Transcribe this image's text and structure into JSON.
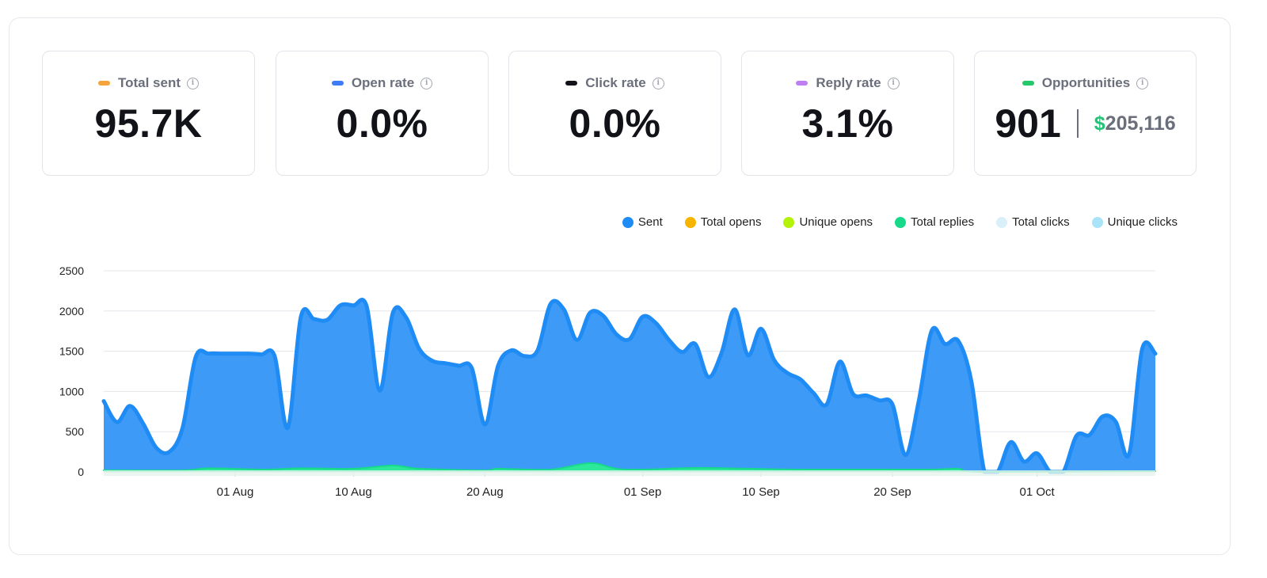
{
  "cards": [
    {
      "label": "Total sent",
      "value": "95.7K",
      "color": "#f3a53b",
      "icon": "info-icon"
    },
    {
      "label": "Open rate",
      "value": "0.0%",
      "color": "#3d7bf7",
      "icon": "info-icon"
    },
    {
      "label": "Click rate",
      "value": "0.0%",
      "color": "#111318",
      "icon": "info-icon"
    },
    {
      "label": "Reply rate",
      "value": "3.1%",
      "color": "#c07ff0",
      "icon": "info-icon"
    },
    {
      "label": "Opportunities",
      "value": "901",
      "currency": "$",
      "amount": "205,116",
      "color": "#24c86a",
      "icon": "info-icon"
    }
  ],
  "legend": [
    {
      "label": "Sent",
      "color": "#1f8cf5"
    },
    {
      "label": "Total opens",
      "color": "#f7b500"
    },
    {
      "label": "Unique opens",
      "color": "#b5f20a"
    },
    {
      "label": "Total replies",
      "color": "#17d98a"
    },
    {
      "label": "Total clicks",
      "color": "#d9f0fb"
    },
    {
      "label": "Unique clicks",
      "color": "#a9e3f7"
    }
  ],
  "chart_data": {
    "type": "area",
    "x_start": "2024-07-22",
    "x_end": "2024-10-07",
    "x_tick_labels": [
      "01 Aug",
      "10 Aug",
      "20 Aug",
      "01 Sep",
      "10 Sep",
      "20 Sep",
      "01 Oct"
    ],
    "y_tick_labels": [
      "0",
      "500",
      "1000",
      "1500",
      "2000",
      "2500"
    ],
    "ylim": [
      0,
      2500
    ],
    "grid": true,
    "legend_position": "top-right",
    "series": [
      {
        "name": "Sent",
        "color": "#1f8cf5",
        "fill": "#3d9af7",
        "points": [
          [
            "2024-07-22",
            880
          ],
          [
            "2024-07-23",
            620
          ],
          [
            "2024-07-24",
            820
          ],
          [
            "2024-07-25",
            600
          ],
          [
            "2024-07-26",
            300
          ],
          [
            "2024-07-27",
            250
          ],
          [
            "2024-07-28",
            550
          ],
          [
            "2024-07-29",
            1430
          ],
          [
            "2024-07-30",
            1470
          ],
          [
            "2024-07-31",
            1470
          ],
          [
            "2024-08-01",
            1470
          ],
          [
            "2024-08-02",
            1470
          ],
          [
            "2024-08-03",
            1460
          ],
          [
            "2024-08-04",
            1440
          ],
          [
            "2024-08-05",
            550
          ],
          [
            "2024-08-06",
            1930
          ],
          [
            "2024-08-07",
            1900
          ],
          [
            "2024-08-08",
            1890
          ],
          [
            "2024-08-09",
            2070
          ],
          [
            "2024-08-10",
            2070
          ],
          [
            "2024-08-11",
            2060
          ],
          [
            "2024-08-12",
            1010
          ],
          [
            "2024-08-13",
            1980
          ],
          [
            "2024-08-14",
            1920
          ],
          [
            "2024-08-15",
            1530
          ],
          [
            "2024-08-16",
            1380
          ],
          [
            "2024-08-17",
            1350
          ],
          [
            "2024-08-18",
            1320
          ],
          [
            "2024-08-19",
            1290
          ],
          [
            "2024-08-20",
            590
          ],
          [
            "2024-08-21",
            1320
          ],
          [
            "2024-08-22",
            1510
          ],
          [
            "2024-08-23",
            1440
          ],
          [
            "2024-08-24",
            1510
          ],
          [
            "2024-08-25",
            2090
          ],
          [
            "2024-08-26",
            2020
          ],
          [
            "2024-08-27",
            1640
          ],
          [
            "2024-08-28",
            1980
          ],
          [
            "2024-08-29",
            1940
          ],
          [
            "2024-08-30",
            1710
          ],
          [
            "2024-08-31",
            1650
          ],
          [
            "2024-09-01",
            1930
          ],
          [
            "2024-09-02",
            1850
          ],
          [
            "2024-09-03",
            1640
          ],
          [
            "2024-09-04",
            1490
          ],
          [
            "2024-09-05",
            1590
          ],
          [
            "2024-09-06",
            1180
          ],
          [
            "2024-09-07",
            1480
          ],
          [
            "2024-09-08",
            2020
          ],
          [
            "2024-09-09",
            1450
          ],
          [
            "2024-09-10",
            1780
          ],
          [
            "2024-09-11",
            1390
          ],
          [
            "2024-09-12",
            1230
          ],
          [
            "2024-09-13",
            1150
          ],
          [
            "2024-09-14",
            980
          ],
          [
            "2024-09-15",
            840
          ],
          [
            "2024-09-16",
            1370
          ],
          [
            "2024-09-17",
            970
          ],
          [
            "2024-09-18",
            950
          ],
          [
            "2024-09-19",
            890
          ],
          [
            "2024-09-20",
            840
          ],
          [
            "2024-09-21",
            210
          ],
          [
            "2024-09-22",
            880
          ],
          [
            "2024-09-23",
            1760
          ],
          [
            "2024-09-24",
            1590
          ],
          [
            "2024-09-25",
            1630
          ],
          [
            "2024-09-26",
            1130
          ],
          [
            "2024-09-27",
            0
          ],
          [
            "2024-09-28",
            0
          ],
          [
            "2024-09-29",
            370
          ],
          [
            "2024-09-30",
            130
          ],
          [
            "2024-10-01",
            230
          ],
          [
            "2024-10-02",
            0
          ],
          [
            "2024-10-03",
            0
          ],
          [
            "2024-10-04",
            450
          ],
          [
            "2024-10-05",
            460
          ],
          [
            "2024-10-06",
            690
          ],
          [
            "2024-10-07",
            620
          ],
          [
            "2024-10-08",
            220
          ],
          [
            "2024-10-09",
            1530
          ],
          [
            "2024-10-10",
            1470
          ]
        ]
      },
      {
        "name": "Total replies",
        "color": "#17d98a",
        "fill": "#2ee89a",
        "points": [
          [
            "2024-07-22",
            20
          ],
          [
            "2024-07-28",
            20
          ],
          [
            "2024-07-30",
            45
          ],
          [
            "2024-08-03",
            30
          ],
          [
            "2024-08-06",
            45
          ],
          [
            "2024-08-10",
            40
          ],
          [
            "2024-08-13",
            80
          ],
          [
            "2024-08-15",
            40
          ],
          [
            "2024-08-20",
            20
          ],
          [
            "2024-08-21",
            40
          ],
          [
            "2024-08-25",
            30
          ],
          [
            "2024-08-28",
            110
          ],
          [
            "2024-08-30",
            40
          ],
          [
            "2024-09-01",
            30
          ],
          [
            "2024-09-05",
            50
          ],
          [
            "2024-09-09",
            40
          ],
          [
            "2024-09-13",
            30
          ],
          [
            "2024-09-18",
            30
          ],
          [
            "2024-09-23",
            30
          ],
          [
            "2024-09-25",
            40
          ],
          [
            "2024-09-27",
            0
          ],
          [
            "2024-10-10",
            10
          ]
        ]
      }
    ]
  }
}
